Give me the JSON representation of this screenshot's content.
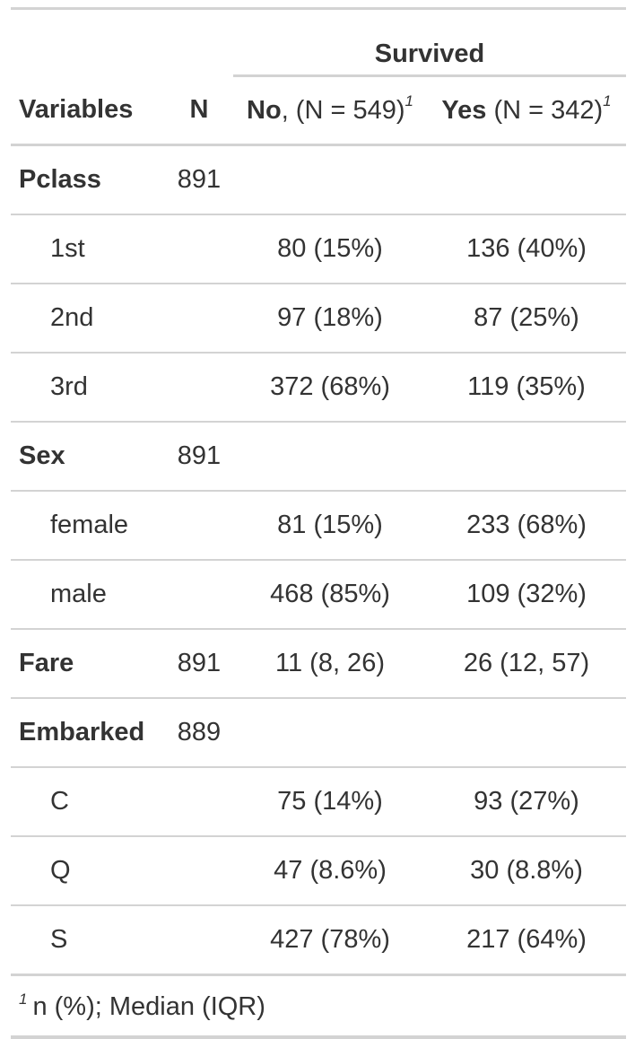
{
  "header": {
    "spanner": "Survived",
    "col_variables": "Variables",
    "col_n": "N",
    "col_no_bold": "No",
    "col_no_rest": ", (N = 549)",
    "col_yes_bold": "Yes",
    "col_yes_rest": " (N = 342)",
    "footnote_mark": "1"
  },
  "rows": [
    {
      "label": "Pclass",
      "type": "var",
      "n": "891",
      "no": "",
      "yes": ""
    },
    {
      "label": "1st",
      "type": "level",
      "n": "",
      "no": "80 (15%)",
      "yes": "136 (40%)"
    },
    {
      "label": "2nd",
      "type": "level",
      "n": "",
      "no": "97 (18%)",
      "yes": "87 (25%)"
    },
    {
      "label": "3rd",
      "type": "level",
      "n": "",
      "no": "372 (68%)",
      "yes": "119 (35%)"
    },
    {
      "label": "Sex",
      "type": "var",
      "n": "891",
      "no": "",
      "yes": ""
    },
    {
      "label": "female",
      "type": "level",
      "n": "",
      "no": "81 (15%)",
      "yes": "233 (68%)"
    },
    {
      "label": "male",
      "type": "level",
      "n": "",
      "no": "468 (85%)",
      "yes": "109 (32%)"
    },
    {
      "label": "Fare",
      "type": "var",
      "n": "891",
      "no": "11 (8, 26)",
      "yes": "26 (12, 57)"
    },
    {
      "label": "Embarked",
      "type": "var",
      "n": "889",
      "no": "",
      "yes": ""
    },
    {
      "label": "C",
      "type": "level",
      "n": "",
      "no": "75 (14%)",
      "yes": "93 (27%)"
    },
    {
      "label": "Q",
      "type": "level",
      "n": "",
      "no": "47 (8.6%)",
      "yes": "30 (8.8%)"
    },
    {
      "label": "S",
      "type": "level",
      "n": "",
      "no": "427 (78%)",
      "yes": "217 (64%)"
    }
  ],
  "footnote": {
    "mark": "1",
    "text": "n (%); Median (IQR)"
  }
}
